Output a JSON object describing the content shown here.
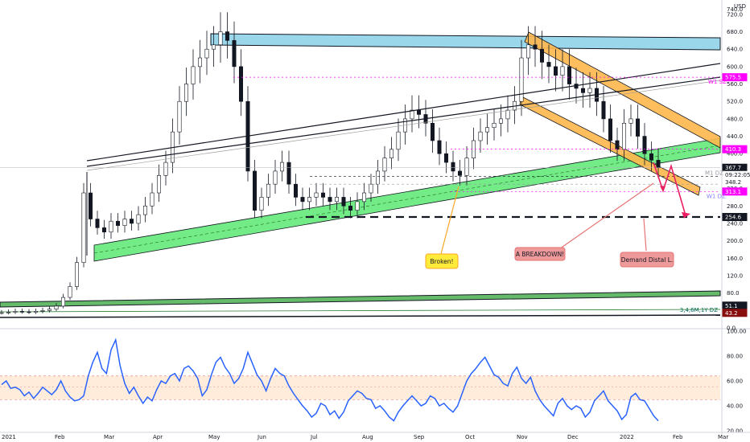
{
  "chart_data": [
    {
      "type": "candlestick",
      "currency": "USD",
      "ylim": [
        0,
        740
      ],
      "y_ticks": [
        0,
        40,
        80,
        120,
        160,
        200,
        240,
        280,
        320,
        360,
        400,
        440,
        480,
        520,
        560,
        600,
        640,
        680,
        720
      ],
      "y_tick_labels": [
        "0.0",
        "40.0",
        "80.0",
        "120.0",
        "160.0",
        "200.0",
        "240.0",
        "280.0",
        "320.0",
        "360.0",
        "400.0",
        "440.0",
        "480.0",
        "520.0",
        "560.0",
        "600.0",
        "640.0",
        "680.0",
        "720.0"
      ],
      "top_tick_label": "740.0",
      "x_tick_labels": [
        "2021",
        "Feb",
        "Mar",
        "Apr",
        "May",
        "Jun",
        "Jul",
        "Aug",
        "Sep",
        "Oct",
        "Nov",
        "Dec",
        "2022",
        "Feb",
        "Mar"
      ],
      "price_tags": [
        {
          "text": "575.5",
          "value": 575.5,
          "color": "#ff00ff",
          "text_color": "#ffffff"
        },
        {
          "text": "410.3",
          "value": 410.3,
          "color": "#ff00ff",
          "text_color": "#ffffff"
        },
        {
          "text": "367.7",
          "value": 367.7,
          "color": "#131722",
          "text_color": "#ffffff"
        },
        {
          "text": "09:22:05",
          "value": 355,
          "color": "#ffffff",
          "text_color": "#131722"
        },
        {
          "text": "348.2",
          "value": 348.2,
          "color": "#ffffff",
          "text_color": "#131722"
        },
        {
          "text": "313.1",
          "value": 313.1,
          "color": "#ff00ff",
          "text_color": "#ffffff"
        },
        {
          "text": "254.6",
          "value": 254.6,
          "color": "#131722",
          "text_color": "#ffffff"
        },
        {
          "text": "51.1",
          "value": 51.1,
          "color": "#131722",
          "text_color": "#ffffff"
        },
        {
          "text": "43.2",
          "value": 43.2,
          "color": "#880e0e",
          "text_color": "#ffffff"
        }
      ],
      "zone_labels": [
        {
          "text": "W1 SZ",
          "value": 575.5,
          "color": "#ff00ff"
        },
        {
          "text": "W1 DZ",
          "value": 313.1,
          "color": "#8080ff"
        },
        {
          "text": "M1 DZ",
          "value": 348.2,
          "color": "#9598a1"
        }
      ],
      "dz_label": {
        "text": "3,4,6M,1Y DZ",
        "color": "#00695c"
      },
      "close_series": [
        35,
        36,
        38,
        37,
        36,
        38,
        40,
        43,
        50,
        70,
        95,
        150,
        310,
        250,
        230,
        220,
        245,
        235,
        250,
        240,
        260,
        280,
        310,
        350,
        380,
        450,
        520,
        560,
        600,
        620,
        640,
        650,
        680,
        660,
        600,
        520,
        360,
        270,
        300,
        330,
        360,
        380,
        330,
        300,
        290,
        300,
        310,
        300,
        290,
        300,
        280,
        270,
        290,
        310,
        330,
        360,
        390,
        410,
        450,
        480,
        500,
        490,
        470,
        430,
        400,
        380,
        360,
        350,
        390,
        430,
        450,
        460,
        470,
        480,
        500,
        520,
        620,
        650,
        640,
        610,
        600,
        580,
        600,
        560,
        550,
        540,
        550,
        520,
        480,
        430,
        410,
        470,
        480,
        440,
        400,
        385,
        368
      ],
      "annotations": [
        {
          "text": "Broken!",
          "bg": "#ffeb3b",
          "border": "#f9a825"
        },
        {
          "text": "A BREAKDOWN!",
          "bg": "#ef9a9a",
          "border": "#e57373"
        },
        {
          "text": "Demand Distal L.",
          "bg": "#ef9a9a",
          "border": "#e57373"
        }
      ]
    },
    {
      "type": "line",
      "name": "RSI",
      "ylim": [
        20,
        100
      ],
      "y_ticks": [
        20,
        40,
        60,
        80,
        100
      ],
      "y_tick_labels": [
        "20.00",
        "40.00",
        "60.00",
        "80.00",
        "100.00"
      ],
      "band": [
        45,
        64
      ],
      "values": [
        57,
        60,
        54,
        55,
        53,
        48,
        51,
        46,
        50,
        55,
        52,
        49,
        53,
        60,
        52,
        47,
        44,
        45,
        48,
        64,
        75,
        83,
        70,
        66,
        85,
        93,
        72,
        58,
        50,
        55,
        48,
        42,
        47,
        44,
        53,
        60,
        58,
        64,
        66,
        60,
        70,
        72,
        68,
        62,
        48,
        53,
        65,
        75,
        79,
        71,
        66,
        58,
        62,
        70,
        83,
        74,
        65,
        60,
        52,
        62,
        70,
        66,
        64,
        56,
        50,
        45,
        40,
        36,
        31,
        34,
        42,
        40,
        33,
        36,
        30,
        35,
        44,
        48,
        52,
        50,
        46,
        45,
        38,
        40,
        36,
        31,
        28,
        35,
        40,
        44,
        48,
        44,
        40,
        42,
        48,
        46,
        40,
        42,
        38,
        35,
        40,
        50,
        60,
        66,
        70,
        75,
        79,
        72,
        65,
        63,
        58,
        56,
        66,
        71,
        62,
        58,
        63,
        52,
        45,
        40,
        36,
        32,
        42,
        46,
        40,
        37,
        40,
        38,
        31,
        35,
        44,
        48,
        52,
        44,
        40,
        36,
        29,
        33,
        47,
        50,
        45,
        44,
        38,
        32,
        28
      ]
    }
  ]
}
